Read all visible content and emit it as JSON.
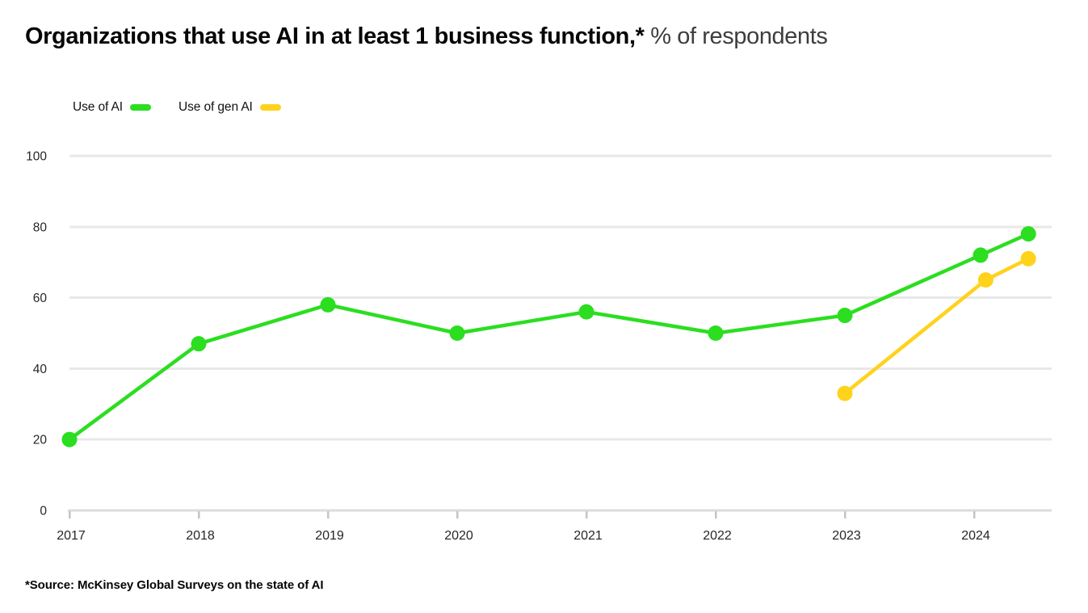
{
  "title": {
    "bold": "Organizations that use AI in at least 1 business function,*",
    "regular": " % of respondents"
  },
  "source": "*Source: McKinsey Global Surveys on the state of AI",
  "colors": {
    "use_of_ai": "#2BDE20",
    "use_of_gen_ai": "#FFD21C",
    "gridline": "#e8e8e8",
    "axis_line": "#dcdcdc",
    "tick": "#c4c4c4",
    "axis_text": "#262626"
  },
  "chart_data": {
    "type": "line",
    "title": "Organizations that use AI in at least 1 business function,*",
    "subtitle": "% of respondents",
    "xlabel": "",
    "ylabel": "",
    "x_tick_labels": [
      "2017",
      "2018",
      "2019",
      "2020",
      "2021",
      "2022",
      "2023",
      "2024"
    ],
    "x_tick_years": [
      2017,
      2018,
      2019,
      2020,
      2021,
      2022,
      2023,
      2024
    ],
    "y_tick_labels": [
      "0",
      "20",
      "40",
      "60",
      "80",
      "100"
    ],
    "y_ticks": [
      0,
      20,
      40,
      60,
      80,
      100
    ],
    "ylim": [
      0,
      100
    ],
    "grid": "horizontal",
    "legend_position": "top-left",
    "series": [
      {
        "name": "Use of AI",
        "color_key": "use_of_ai",
        "x": [
          2017,
          2018,
          2019,
          2020,
          2021,
          2022,
          2023,
          2024.05,
          2024.42
        ],
        "values": [
          20,
          47,
          58,
          50,
          56,
          50,
          55,
          72,
          78
        ]
      },
      {
        "name": "Use of gen AI",
        "color_key": "use_of_gen_ai",
        "x": [
          2023,
          2024.09,
          2024.42
        ],
        "values": [
          33,
          65,
          71
        ]
      }
    ]
  }
}
